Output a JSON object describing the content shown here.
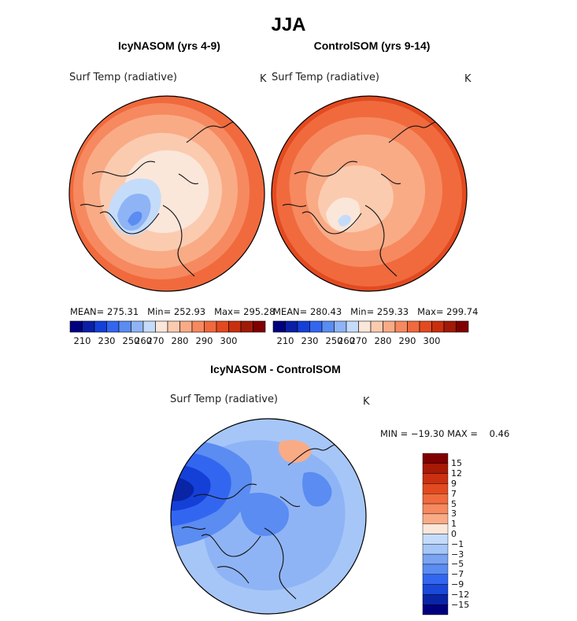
{
  "figure_title": "JJA",
  "chart_data": [
    {
      "type": "heatmap",
      "title": "IcyNASOM (yrs 4-9)",
      "variable": "Surf Temp (radiative)",
      "units": "K",
      "stats": {
        "mean_label": "MEAN=",
        "mean": "275.31",
        "min_label": "Min=",
        "min": "252.93",
        "max_label": "Max=",
        "max": "295.28"
      },
      "colorbar": {
        "ticks": [
          "210",
          "230",
          "250",
          "260",
          "270",
          "280",
          "290",
          "300"
        ]
      }
    },
    {
      "type": "heatmap",
      "title": "ControlSOM (yrs 9-14)",
      "variable": "Surf Temp (radiative)",
      "units": "K",
      "stats": {
        "mean_label": "MEAN=",
        "mean": "280.43",
        "min_label": "Min=",
        "min": "259.33",
        "max_label": "Max=",
        "max": "299.74"
      },
      "colorbar": {
        "ticks": [
          "210",
          "230",
          "250",
          "260",
          "270",
          "280",
          "290",
          "300"
        ]
      }
    },
    {
      "type": "heatmap",
      "title": "IcyNASOM - ControlSOM",
      "variable": "Surf Temp (radiative)",
      "units": "K",
      "range_text": "MIN = −19.30 MAX =    0.46",
      "colorbar": {
        "ticks": [
          "15",
          "12",
          "9",
          "7",
          "5",
          "3",
          "1",
          "0",
          "−1",
          "−3",
          "−5",
          "−7",
          "−9",
          "−12",
          "−15"
        ]
      }
    }
  ],
  "colors": {
    "abs_scale": [
      "#00007f",
      "#0a1fa6",
      "#1440d8",
      "#3366f0",
      "#5a8cf2",
      "#8fb4f5",
      "#c4dcfa",
      "#fbe6da",
      "#fbcbb0",
      "#f9ab86",
      "#f6895f",
      "#f06a3d",
      "#e34a20",
      "#c82f0f",
      "#a01a08",
      "#800000"
    ],
    "diff_scale": [
      "#800000",
      "#a81a06",
      "#cc3010",
      "#e34a20",
      "#f06a3d",
      "#f6895f",
      "#f9ab86",
      "#fbe6da",
      "#c4dcfa",
      "#a6c6f8",
      "#7aa3f2",
      "#5a8cf2",
      "#3366f0",
      "#1a48d8",
      "#0a24a6",
      "#00007f"
    ]
  }
}
